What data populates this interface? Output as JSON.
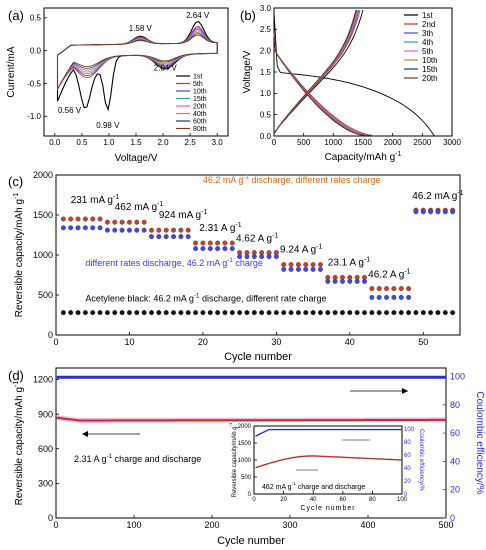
{
  "chart_data": [
    {
      "panel": "(a)",
      "type": "line",
      "xlabel": "Voltage/V",
      "ylabel": "Current/mA",
      "xlim": [
        -0.2,
        3.2
      ],
      "ylim": [
        -1.3,
        0.65
      ],
      "xticks": [
        "0.0",
        "0.5",
        "1.0",
        "1.5",
        "2.0",
        "2.5",
        "3.0"
      ],
      "yticks": [
        "0.5",
        "0.0",
        "-0.5",
        "-1.0"
      ],
      "annotations": [
        "1.58 V",
        "2.64 V",
        "2.04 V",
        "0.56 V",
        "0.98 V"
      ],
      "legend_position": "lower-right",
      "series": [
        {
          "name": "1st",
          "color": "#000000",
          "peaks": {
            "cathodic_V": [
              0.56,
              0.98
            ],
            "anodic_V": [
              1.58,
              2.64
            ]
          }
        },
        {
          "name": "5th",
          "color": "#e8232c"
        },
        {
          "name": "10th",
          "color": "#3f48cc"
        },
        {
          "name": "15th",
          "color": "#2aa7a0"
        },
        {
          "name": "20th",
          "color": "#ff4fd8"
        },
        {
          "name": "40th",
          "color": "#a0a020"
        },
        {
          "name": "60th",
          "color": "#1c2fa0"
        },
        {
          "name": "80th",
          "color": "#7a3b10"
        }
      ]
    },
    {
      "panel": "(b)",
      "type": "line",
      "xlabel": "Capacity/mAh g",
      "xlabel_sup": "-1",
      "ylabel": "Voltage/V",
      "xlim": [
        0,
        3000
      ],
      "ylim": [
        0,
        3.0
      ],
      "xticks": [
        "0",
        "500",
        "1000",
        "1500",
        "2000",
        "2500",
        "3000"
      ],
      "yticks": [
        "0.0",
        "0.5",
        "1.0",
        "1.5",
        "2.0",
        "2.5",
        "3.0"
      ],
      "legend_position": "top-right",
      "series": [
        {
          "name": "1st",
          "color": "#000000",
          "discharge_capacity": 2700,
          "charge_capacity": 1500
        },
        {
          "name": "2nd",
          "color": "#e8232c",
          "discharge_capacity": 1650,
          "charge_capacity": 1450
        },
        {
          "name": "3th",
          "color": "#3f48cc",
          "discharge_capacity": 1600,
          "charge_capacity": 1430
        },
        {
          "name": "4th",
          "color": "#2aa7a0",
          "discharge_capacity": 1580,
          "charge_capacity": 1420
        },
        {
          "name": "5th",
          "color": "#ff4fd8",
          "discharge_capacity": 1560,
          "charge_capacity": 1410
        },
        {
          "name": "10th",
          "color": "#a0a020",
          "discharge_capacity": 1540,
          "charge_capacity": 1400
        },
        {
          "name": "15th",
          "color": "#1c2fa0",
          "discharge_capacity": 1520,
          "charge_capacity": 1390
        },
        {
          "name": "20th",
          "color": "#7a3b10",
          "discharge_capacity": 1500,
          "charge_capacity": 1380
        }
      ]
    },
    {
      "panel": "(c)",
      "type": "scatter",
      "xlabel": "Cycle number",
      "ylabel": "Reversible capacity/mAh g",
      "ylabel_sup": "-1",
      "xlim": [
        0,
        55
      ],
      "ylim": [
        0,
        2000
      ],
      "xticks": [
        "0",
        "10",
        "20",
        "30",
        "40",
        "50"
      ],
      "yticks": [
        "0",
        "500",
        "1000",
        "1500",
        "2000"
      ],
      "rate_labels": [
        {
          "text": "231 mA g",
          "sup": "-1"
        },
        {
          "text": "462 mA g",
          "sup": "-1"
        },
        {
          "text": "924 mA g",
          "sup": "-1"
        },
        {
          "text": "2.31 A g",
          "sup": "-1"
        },
        {
          "text": "4.62 A g",
          "sup": "-1"
        },
        {
          "text": "9.24 A g",
          "sup": "-1"
        },
        {
          "text": "23.1 A g",
          "sup": "-1"
        },
        {
          "text": "46.2 A g",
          "sup": "-1"
        },
        {
          "text": "46.2 mA g",
          "sup": "-1"
        }
      ],
      "series_labels": {
        "red": {
          "text_a": "46.2 mA g",
          "sup": "-1",
          "text_b": " discharge, different rates charge"
        },
        "blue": {
          "text_a": "different rates discharge, 46.2 mA g",
          "sup": "-1",
          "text_b": " charge"
        },
        "black": {
          "text_a": "Acetylene black: 46.2 mA g",
          "sup": "-1",
          "text_b": " discharge, different rate charge"
        }
      },
      "segments": [
        {
          "cycles": [
            1,
            6
          ],
          "red": 1450,
          "blue": 1340
        },
        {
          "cycles": [
            7,
            12
          ],
          "red": 1410,
          "blue": 1310
        },
        {
          "cycles": [
            13,
            18
          ],
          "red": 1310,
          "blue": 1230
        },
        {
          "cycles": [
            19,
            24
          ],
          "red": 1150,
          "blue": 1080
        },
        {
          "cycles": [
            25,
            30
          ],
          "red": 1030,
          "blue": 980
        },
        {
          "cycles": [
            31,
            36
          ],
          "red": 880,
          "blue": 820
        },
        {
          "cycles": [
            37,
            42
          ],
          "red": 720,
          "blue": 670
        },
        {
          "cycles": [
            43,
            48
          ],
          "red": 580,
          "blue": 470
        },
        {
          "cycles": [
            49,
            54
          ],
          "red": 1560,
          "blue": 1540
        }
      ],
      "black_series": {
        "cycles": [
          1,
          54
        ],
        "value": 280
      },
      "colors": {
        "red": "#c8412a",
        "blue": "#3f48e0",
        "black": "#111111"
      }
    },
    {
      "panel": "(d)",
      "type": "line",
      "xlabel": "Cycle number",
      "ylabel": "Reversible capacity/mAh g",
      "ylabel_sup": "-1",
      "y2label": "Coulombic efficiency/%",
      "xlim": [
        0,
        500
      ],
      "ylim": [
        0,
        1300
      ],
      "y2lim": [
        0,
        106
      ],
      "xticks": [
        "0",
        "100",
        "200",
        "300",
        "400",
        "500"
      ],
      "yticks": [
        "0",
        "300",
        "600",
        "900",
        "1200"
      ],
      "y2ticks": [
        "0",
        "20",
        "40",
        "60",
        "80",
        "100"
      ],
      "label_a": "2.31 A g",
      "label_a_sup": "-1",
      "label_b": " charge and discharge",
      "series": [
        {
          "name": "capacity",
          "color": "#b5342a",
          "start": 870,
          "plateau": 845,
          "end": 850
        },
        {
          "name": "coulombic efficiency",
          "color": "#2a2fd0",
          "value": 99.5
        }
      ],
      "inset": {
        "ylabel": "Reversible capacity/mAh g",
        "ylabel_sup": "-1",
        "y2label": "Coulombic efficiency/%",
        "xlabel": "Cycle number",
        "xlim": [
          0,
          100
        ],
        "ylim": [
          0,
          2000
        ],
        "y2lim": [
          0,
          105
        ],
        "xticks": [
          "0",
          "20",
          "40",
          "60",
          "80",
          "100"
        ],
        "yticks": [
          "0",
          "500",
          "1000",
          "1500",
          "2000"
        ],
        "y2ticks": [
          "0",
          "20",
          "40",
          "60",
          "80",
          "100"
        ],
        "label_a": "462 mA g",
        "label_a_sup": "-1",
        "label_b": " charge and discharge",
        "capacity": {
          "start": 760,
          "peak": 1120,
          "end": 1000
        },
        "efficiency": {
          "start": 88,
          "value": 99.5
        }
      }
    }
  ]
}
